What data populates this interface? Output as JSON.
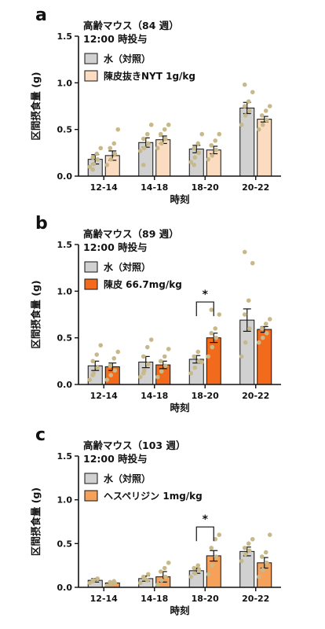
{
  "colors": {
    "water": "#d1d1d1",
    "dot": "#c8b98a",
    "axis": "#111111"
  },
  "chart_data": [
    {
      "type": "bar",
      "panel_label": "a",
      "annotation": [
        "高齢マウス（84 週）",
        "12:00 時投与"
      ],
      "categories": [
        "12-14",
        "14-18",
        "18-20",
        "20-22"
      ],
      "xlabel": "時刻",
      "ylabel": "区間摂食量 (g)",
      "ylim": [
        0,
        1.5
      ],
      "yticks": [
        "0.0",
        "0.5",
        "1.0",
        "1.5"
      ],
      "grid": false,
      "legend_position": "top-left",
      "series": [
        {
          "name": "水（対照）",
          "color": "#d1d1d1",
          "values": [
            0.18,
            0.36,
            0.29,
            0.73
          ],
          "errors": [
            0.05,
            0.05,
            0.04,
            0.06
          ],
          "points": [
            [
              0.1,
              0.13,
              0.18,
              0.2,
              0.24,
              0.3,
              0.07
            ],
            [
              0.27,
              0.3,
              0.35,
              0.4,
              0.45,
              0.55,
              0.12
            ],
            [
              0.15,
              0.2,
              0.25,
              0.3,
              0.35,
              0.45,
              0.12
            ],
            [
              0.55,
              0.65,
              0.7,
              0.75,
              0.8,
              0.9,
              0.98
            ]
          ]
        },
        {
          "name": "陳皮抜きNYT 1g/kg",
          "color": "#fcdcc0",
          "values": [
            0.22,
            0.39,
            0.28,
            0.61
          ],
          "errors": [
            0.05,
            0.04,
            0.04,
            0.03
          ],
          "points": [
            [
              0.12,
              0.18,
              0.24,
              0.3,
              0.35,
              0.5
            ],
            [
              0.3,
              0.35,
              0.4,
              0.45,
              0.5,
              0.55
            ],
            [
              0.18,
              0.22,
              0.28,
              0.33,
              0.38,
              0.45
            ],
            [
              0.5,
              0.55,
              0.6,
              0.65,
              0.7,
              0.75
            ]
          ]
        }
      ]
    },
    {
      "type": "bar",
      "panel_label": "b",
      "annotation": [
        "高齢マウス（89 週）",
        "12:00 時投与"
      ],
      "categories": [
        "12-14",
        "14-18",
        "18-20",
        "20-22"
      ],
      "xlabel": "時刻",
      "ylabel": "区間摂食量 (g)",
      "ylim": [
        0,
        1.5
      ],
      "yticks": [
        "0.0",
        "0.5",
        "1.0",
        "1.5"
      ],
      "grid": false,
      "legend_position": "top-left",
      "significance": [
        {
          "category": "18-20",
          "label": "*"
        }
      ],
      "series": [
        {
          "name": "水（対照）",
          "color": "#d1d1d1",
          "values": [
            0.2,
            0.24,
            0.27,
            0.69
          ],
          "errors": [
            0.05,
            0.06,
            0.04,
            0.12
          ],
          "points": [
            [
              0.05,
              0.12,
              0.18,
              0.25,
              0.32,
              0.42,
              0.1
            ],
            [
              0.08,
              0.15,
              0.22,
              0.3,
              0.4,
              0.48,
              0.12
            ],
            [
              0.12,
              0.18,
              0.25,
              0.3,
              0.35,
              0.24
            ],
            [
              0.3,
              0.45,
              0.6,
              0.75,
              0.9,
              1.3,
              1.42
            ]
          ]
        },
        {
          "name": "陳皮 66.7mg/kg",
          "color": "#f26a1b",
          "values": [
            0.19,
            0.21,
            0.5,
            0.59
          ],
          "errors": [
            0.04,
            0.04,
            0.05,
            0.03
          ],
          "points": [
            [
              0.05,
              0.1,
              0.15,
              0.2,
              0.28,
              0.35
            ],
            [
              0.08,
              0.14,
              0.2,
              0.25,
              0.3,
              0.38
            ],
            [
              0.3,
              0.4,
              0.5,
              0.55,
              0.6,
              0.75,
              0.8
            ],
            [
              0.45,
              0.5,
              0.55,
              0.6,
              0.65,
              0.7
            ]
          ]
        }
      ]
    },
    {
      "type": "bar",
      "panel_label": "c",
      "annotation": [
        "高齢マウス（103 週）",
        "12:00 時投与"
      ],
      "categories": [
        "12-14",
        "14-18",
        "18-20",
        "20-22"
      ],
      "xlabel": "時刻",
      "ylabel": "区間摂食量 (g)",
      "ylim": [
        0,
        1.5
      ],
      "yticks": [
        "0.0",
        "0.5",
        "1.0",
        "1.5"
      ],
      "grid": false,
      "legend_position": "top-left",
      "significance": [
        {
          "category": "18-20",
          "label": "*"
        }
      ],
      "series": [
        {
          "name": "水（対照）",
          "color": "#d1d1d1",
          "values": [
            0.08,
            0.1,
            0.19,
            0.41
          ],
          "errors": [
            0.02,
            0.03,
            0.03,
            0.05
          ],
          "points": [
            [
              0.05,
              0.08,
              0.1,
              0.07
            ],
            [
              0.05,
              0.1,
              0.15,
              0.12,
              0.08
            ],
            [
              0.12,
              0.16,
              0.2,
              0.22,
              0.25
            ],
            [
              0.3,
              0.38,
              0.42,
              0.45,
              0.5,
              0.55
            ]
          ]
        },
        {
          "name": "ヘスペリジン 1mg/kg",
          "color": "#f6a15a",
          "values": [
            0.05,
            0.12,
            0.36,
            0.28
          ],
          "errors": [
            0.01,
            0.06,
            0.06,
            0.06
          ],
          "points": [
            [
              0.02,
              0.04,
              0.05,
              0.06,
              0.07
            ],
            [
              0.03,
              0.08,
              0.12,
              0.18,
              0.22,
              0.28
            ],
            [
              0.15,
              0.25,
              0.35,
              0.45,
              0.55,
              0.6
            ],
            [
              0.12,
              0.2,
              0.28,
              0.35,
              0.4,
              0.6
            ]
          ]
        }
      ]
    }
  ]
}
